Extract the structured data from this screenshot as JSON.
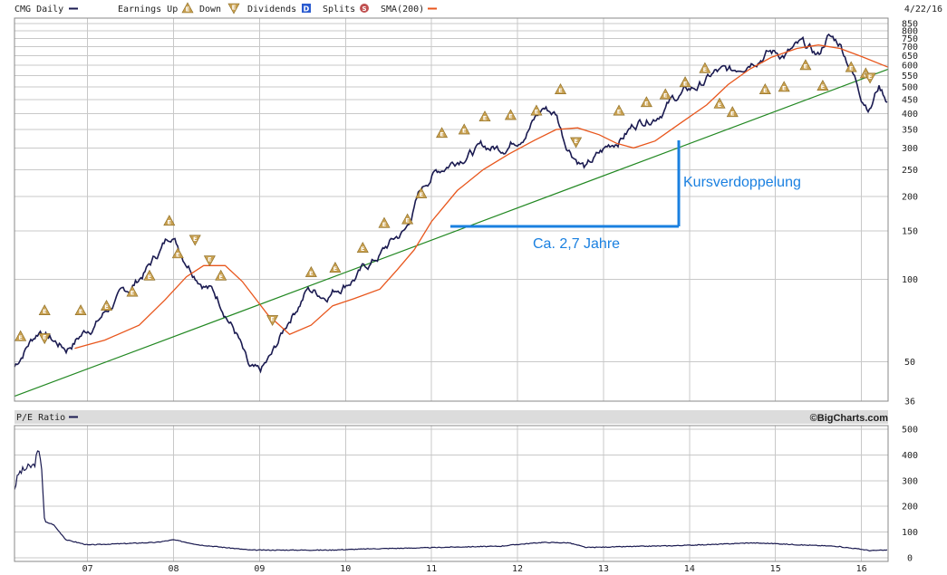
{
  "header": {
    "symbol_label": "CMG Daily",
    "legend_earnings_up": "Earnings Up",
    "legend_down": "Down",
    "legend_dividends": "Dividends",
    "legend_dividends_mark": "D",
    "legend_splits": "Splits",
    "legend_splits_mark": "S",
    "legend_sma": "SMA(200)",
    "date": "4/22/16",
    "earnings_mark": "E"
  },
  "annotations": {
    "doubling": "Kursverdoppelung",
    "period": "Ca. 2,7 Jahre"
  },
  "pe_panel": {
    "title": "P/E Ratio",
    "credit": "©BigCharts.com"
  },
  "colors": {
    "price": "#1a1a50",
    "sma": "#e8561c",
    "trend": "#228822",
    "annotation": "#1a80e0",
    "earnings_up": "#c8a050",
    "grid": "#c8c8c8",
    "dividend_badge": "#2a5bd0",
    "split_badge": "#c05050"
  },
  "chart_data": [
    {
      "type": "line",
      "title": "CMG Daily",
      "yscale": "log",
      "ylim": [
        36,
        850
      ],
      "xlim": [
        2006.15,
        2016.31
      ],
      "y_ticks": [
        36,
        50,
        100,
        150,
        200,
        250,
        300,
        350,
        400,
        450,
        500,
        550,
        600,
        650,
        700,
        750,
        800,
        850
      ],
      "x_tick_labels": [
        "07",
        "08",
        "09",
        "10",
        "11",
        "12",
        "13",
        "14",
        "15",
        "16"
      ],
      "x_tick_positions": [
        2007,
        2008,
        2009,
        2010,
        2011,
        2012,
        2013,
        2014,
        2015,
        2016
      ],
      "grid": true,
      "series": [
        {
          "name": "CMG Daily",
          "x": [
            2006.15,
            2006.3,
            2006.45,
            2006.6,
            2006.75,
            2006.9,
            2007.1,
            2007.3,
            2007.5,
            2007.7,
            2007.85,
            2007.98,
            2008.1,
            2008.25,
            2008.45,
            2008.6,
            2008.75,
            2008.88,
            2009.0,
            2009.15,
            2009.35,
            2009.55,
            2009.75,
            2009.95,
            2010.15,
            2010.35,
            2010.55,
            2010.7,
            2010.85,
            2011.0,
            2011.2,
            2011.4,
            2011.6,
            2011.8,
            2012.0,
            2012.15,
            2012.3,
            2012.45,
            2012.55,
            2012.65,
            2012.8,
            2013.0,
            2013.2,
            2013.4,
            2013.6,
            2013.75,
            2013.9,
            2014.1,
            2014.3,
            2014.5,
            2014.7,
            2014.9,
            2015.1,
            2015.3,
            2015.5,
            2015.6,
            2015.75,
            2015.85,
            2016.0,
            2016.1,
            2016.2,
            2016.31
          ],
          "values": [
            48,
            58,
            66,
            60,
            56,
            62,
            70,
            82,
            92,
            110,
            128,
            148,
            125,
            108,
            92,
            78,
            62,
            46,
            44,
            52,
            72,
            92,
            88,
            96,
            105,
            118,
            138,
            150,
            200,
            240,
            265,
            290,
            300,
            300,
            330,
            370,
            420,
            400,
            320,
            290,
            255,
            290,
            330,
            375,
            400,
            440,
            470,
            500,
            560,
            560,
            640,
            680,
            660,
            700,
            640,
            760,
            720,
            620,
            470,
            430,
            510,
            450
          ]
        },
        {
          "name": "SMA(200)",
          "x": [
            2006.85,
            2007.2,
            2007.6,
            2007.9,
            2008.15,
            2008.35,
            2008.6,
            2008.8,
            2009.1,
            2009.35,
            2009.6,
            2009.85,
            2010.1,
            2010.4,
            2010.6,
            2010.8,
            2011.0,
            2011.3,
            2011.6,
            2011.9,
            2012.2,
            2012.45,
            2012.7,
            2012.95,
            2013.15,
            2013.35,
            2013.6,
            2013.9,
            2014.2,
            2014.45,
            2014.7,
            2014.95,
            2015.25,
            2015.5,
            2015.75,
            2016.0,
            2016.31
          ],
          "values": [
            56,
            60,
            68,
            84,
            102,
            112,
            112,
            98,
            74,
            63,
            68,
            80,
            85,
            92,
            108,
            128,
            162,
            210,
            250,
            285,
            320,
            350,
            355,
            335,
            312,
            300,
            318,
            370,
            430,
            510,
            580,
            640,
            690,
            710,
            690,
            645,
            590
          ]
        }
      ],
      "trendline": {
        "x": [
          2006.15,
          2016.31
        ],
        "values": [
          37.5,
          580
        ]
      },
      "earnings_up_marks": [
        {
          "x": 2006.22,
          "y": 62
        },
        {
          "x": 2006.5,
          "y": 77
        },
        {
          "x": 2006.92,
          "y": 77
        },
        {
          "x": 2007.22,
          "y": 80
        },
        {
          "x": 2007.52,
          "y": 90
        },
        {
          "x": 2007.72,
          "y": 103
        },
        {
          "x": 2007.95,
          "y": 163
        },
        {
          "x": 2008.05,
          "y": 124
        },
        {
          "x": 2008.55,
          "y": 103
        },
        {
          "x": 2009.6,
          "y": 106
        },
        {
          "x": 2009.88,
          "y": 110
        },
        {
          "x": 2010.2,
          "y": 130
        },
        {
          "x": 2010.45,
          "y": 160
        },
        {
          "x": 2010.72,
          "y": 165
        },
        {
          "x": 2010.88,
          "y": 205
        },
        {
          "x": 2011.12,
          "y": 340
        },
        {
          "x": 2011.38,
          "y": 350
        },
        {
          "x": 2011.62,
          "y": 390
        },
        {
          "x": 2011.92,
          "y": 395
        },
        {
          "x": 2012.22,
          "y": 410
        },
        {
          "x": 2012.5,
          "y": 490
        },
        {
          "x": 2013.18,
          "y": 410
        },
        {
          "x": 2013.5,
          "y": 440
        },
        {
          "x": 2013.72,
          "y": 470
        },
        {
          "x": 2013.95,
          "y": 520
        },
        {
          "x": 2014.18,
          "y": 585
        },
        {
          "x": 2014.35,
          "y": 435
        },
        {
          "x": 2014.5,
          "y": 405
        },
        {
          "x": 2014.88,
          "y": 490
        },
        {
          "x": 2015.1,
          "y": 500
        },
        {
          "x": 2015.35,
          "y": 600
        },
        {
          "x": 2015.55,
          "y": 505
        },
        {
          "x": 2015.88,
          "y": 590
        },
        {
          "x": 2016.05,
          "y": 560
        }
      ],
      "earnings_down_marks": [
        {
          "x": 2006.5,
          "y": 61
        },
        {
          "x": 2008.25,
          "y": 139
        },
        {
          "x": 2008.42,
          "y": 117
        },
        {
          "x": 2009.15,
          "y": 71
        },
        {
          "x": 2012.68,
          "y": 315
        },
        {
          "x": 2016.1,
          "y": 540
        }
      ]
    },
    {
      "type": "line",
      "title": "P/E Ratio",
      "ylim": [
        0,
        500
      ],
      "y_ticks": [
        0,
        100,
        200,
        300,
        400,
        500
      ],
      "x_tick_labels": [
        "07",
        "08",
        "09",
        "10",
        "11",
        "12",
        "13",
        "14",
        "15",
        "16"
      ],
      "x_tick_positions": [
        2007,
        2008,
        2009,
        2010,
        2011,
        2012,
        2013,
        2014,
        2015,
        2016
      ],
      "grid": true,
      "series": [
        {
          "name": "P/E Ratio",
          "x": [
            2006.15,
            2006.2,
            2006.25,
            2006.3,
            2006.38,
            2006.42,
            2006.46,
            2006.5,
            2006.6,
            2006.75,
            2007.0,
            2007.4,
            2007.8,
            2008.0,
            2008.3,
            2008.6,
            2008.9,
            2009.3,
            2009.8,
            2010.3,
            2010.8,
            2011.3,
            2011.8,
            2012.0,
            2012.3,
            2012.6,
            2012.8,
            2013.2,
            2013.8,
            2014.3,
            2014.7,
            2015.0,
            2015.3,
            2015.7,
            2016.0,
            2016.1,
            2016.31
          ],
          "values": [
            270,
            330,
            340,
            350,
            360,
            410,
            390,
            140,
            130,
            70,
            50,
            55,
            60,
            70,
            50,
            40,
            30,
            30,
            30,
            35,
            38,
            42,
            45,
            52,
            60,
            58,
            40,
            43,
            47,
            52,
            58,
            55,
            50,
            45,
            33,
            28,
            30
          ]
        }
      ]
    }
  ]
}
